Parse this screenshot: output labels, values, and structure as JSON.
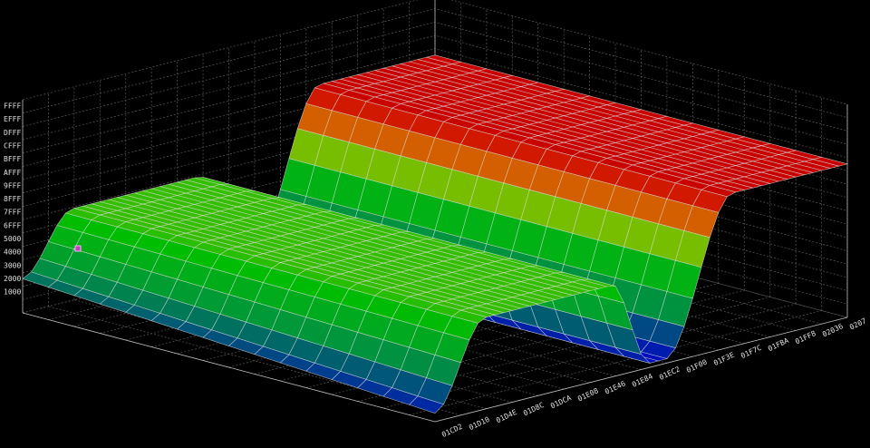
{
  "z_axis": {
    "labels": [
      "FFFF",
      "EFFF",
      "DFFF",
      "CFFF",
      "BFFF",
      "AFFF",
      "9FFF",
      "8FFF",
      "7FFF",
      "6FFF",
      "5000",
      "4000",
      "3000",
      "2000",
      "1000"
    ]
  },
  "x_axis": {
    "labels": [
      "01CD2",
      "01D10",
      "01D4E",
      "01D8C",
      "01DCA",
      "01E08",
      "01E46",
      "01E84",
      "01EC2",
      "01F00",
      "01F3E",
      "01F7C",
      "01FBA",
      "01FF8",
      "02036",
      "0207"
    ]
  }
}
